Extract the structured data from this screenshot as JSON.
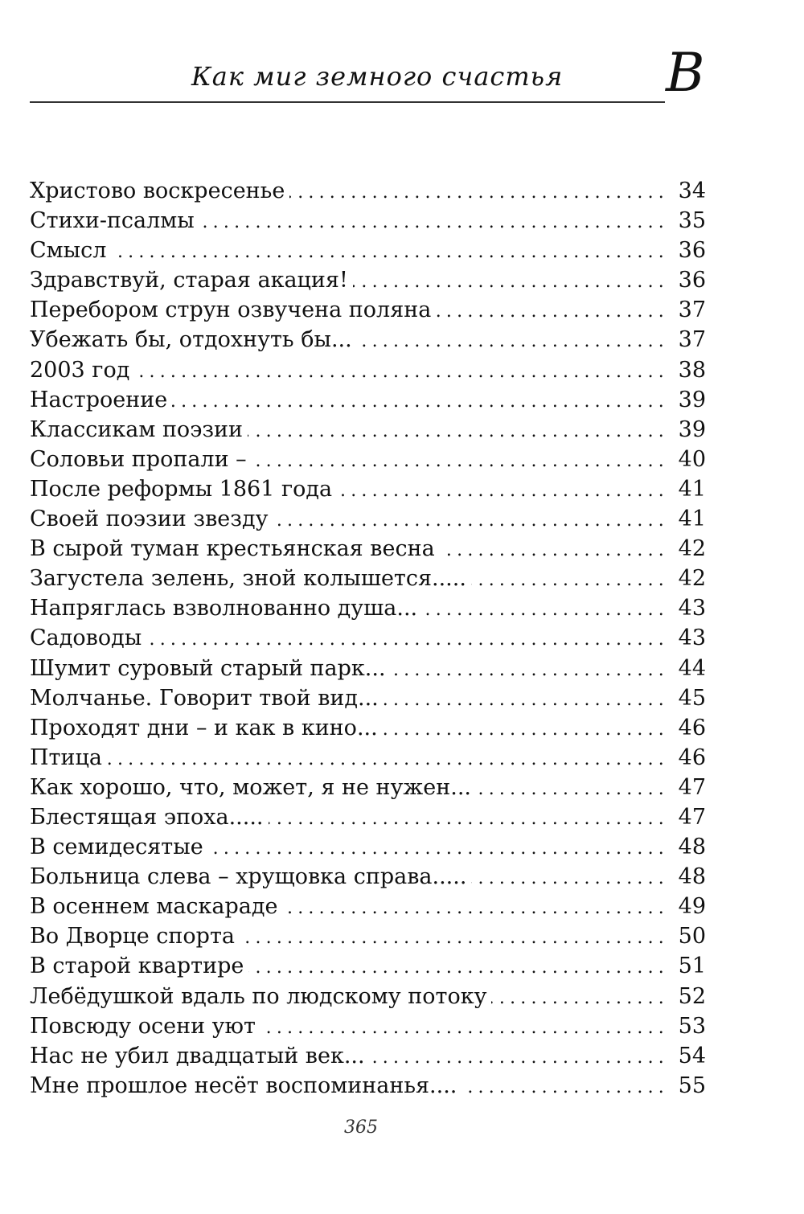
{
  "header": {
    "title": "Как миг земного счастья",
    "section_letter": "В"
  },
  "entries": [
    {
      "title": "Христово воскресенье",
      "page": "34"
    },
    {
      "title": "Стихи-псалмы",
      "page": "35"
    },
    {
      "title": "Смысл",
      "page": "36"
    },
    {
      "title": "Здравствуй, старая акация!",
      "page": "36"
    },
    {
      "title": "Перебором струн озвучена поляна",
      "page": "37"
    },
    {
      "title": "Убежать бы, отдохнуть бы...",
      "page": "37"
    },
    {
      "title": "2003 год",
      "page": "38"
    },
    {
      "title": "Настроение",
      "page": "39"
    },
    {
      "title": "Классикам поэзии",
      "page": "39"
    },
    {
      "title": "Соловьи пропали –",
      "page": "40"
    },
    {
      "title": "После реформы 1861 года",
      "page": "41"
    },
    {
      "title": "Своей поэзии звезду",
      "page": "41"
    },
    {
      "title": "В сырой туман крестьянская весна",
      "page": "42"
    },
    {
      "title": "Загустела зелень, зной колышется.....",
      "page": "42"
    },
    {
      "title": "Напряглась взволнованно душа...",
      "page": "43"
    },
    {
      "title": "Садоводы",
      "page": "43"
    },
    {
      "title": "Шумит суровый старый парк...",
      "page": "44"
    },
    {
      "title": "Молчанье. Говорит твой вид...",
      "page": "45"
    },
    {
      "title": "Проходят дни – и как в кино...",
      "page": "46"
    },
    {
      "title": "Птица",
      "page": "46"
    },
    {
      "title": "Как хорошо, что, может, я не нужен...",
      "page": "47"
    },
    {
      "title": "Блестящая эпоха.....",
      "page": "47"
    },
    {
      "title": "В семидесятые",
      "page": "48"
    },
    {
      "title": "Больница слева – хрущовка справа.....",
      "page": "48"
    },
    {
      "title": "В осеннем маскараде",
      "page": "49"
    },
    {
      "title": "Во Дворце спорта",
      "page": "50"
    },
    {
      "title": "В старой квартире",
      "page": "51"
    },
    {
      "title": "Лебёдушкой вдаль по людскому потоку",
      "page": "52"
    },
    {
      "title": "Повсюду осени уют",
      "page": "53"
    },
    {
      "title": "Нас не убил двадцатый век...",
      "page": "54"
    },
    {
      "title": "Мне прошлое несёт воспоминанья....",
      "page": "55"
    }
  ],
  "folio": "365"
}
